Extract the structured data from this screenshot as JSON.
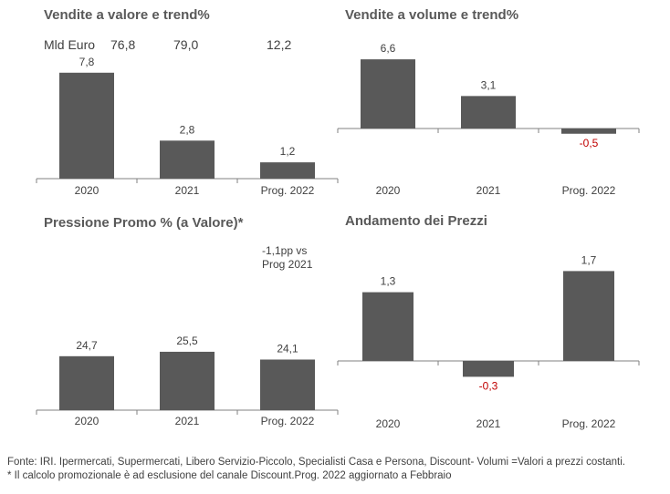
{
  "colors": {
    "bar": "#595959",
    "negative_label": "#c00000",
    "axis": "#808080",
    "text": "#404040"
  },
  "chart_data": [
    {
      "id": "valore",
      "type": "bar",
      "title": "Vendite a valore e trend%",
      "categories": [
        "2020",
        "2021",
        "Prog. 2022"
      ],
      "values": [
        7.8,
        2.8,
        1.2
      ],
      "value_labels": [
        "7,8",
        "2,8",
        "1,2"
      ],
      "note": {
        "prefix": "Mld Euro",
        "values": [
          "76,8",
          "79,0",
          "12,2"
        ]
      }
    },
    {
      "id": "volume",
      "type": "bar",
      "title": "Vendite a volume e trend%",
      "categories": [
        "2020",
        "2021",
        "Prog. 2022"
      ],
      "values": [
        6.6,
        3.1,
        -0.5
      ],
      "value_labels": [
        "6,6",
        "3,1",
        "-0,5"
      ]
    },
    {
      "id": "promo",
      "type": "bar",
      "title": "Pressione Promo % (a Valore)*",
      "categories": [
        "2020",
        "2021",
        "Prog. 2022"
      ],
      "values": [
        24.7,
        25.5,
        24.1
      ],
      "value_labels": [
        "24,7",
        "25,5",
        "24,1"
      ],
      "annotation": [
        "-1,1pp vs",
        "Prog 2021"
      ]
    },
    {
      "id": "prezzi",
      "type": "bar",
      "title": "Andamento dei Prezzi",
      "categories": [
        "2020",
        "2021",
        "Prog. 2022"
      ],
      "values": [
        1.3,
        -0.3,
        1.7
      ],
      "value_labels": [
        "1,3",
        "-0,3",
        "1,7"
      ]
    }
  ],
  "footer": {
    "line1": "Fonte: IRI. Ipermercati, Supermercati, Libero Servizio-Piccolo, Specialisti Casa e Persona, Discount-  Volumi =Valori a prezzi costanti.",
    "line2": "* Il calcolo promozionale è ad esclusione del canale Discount.Prog. 2022 aggiornato a Febbraio"
  }
}
